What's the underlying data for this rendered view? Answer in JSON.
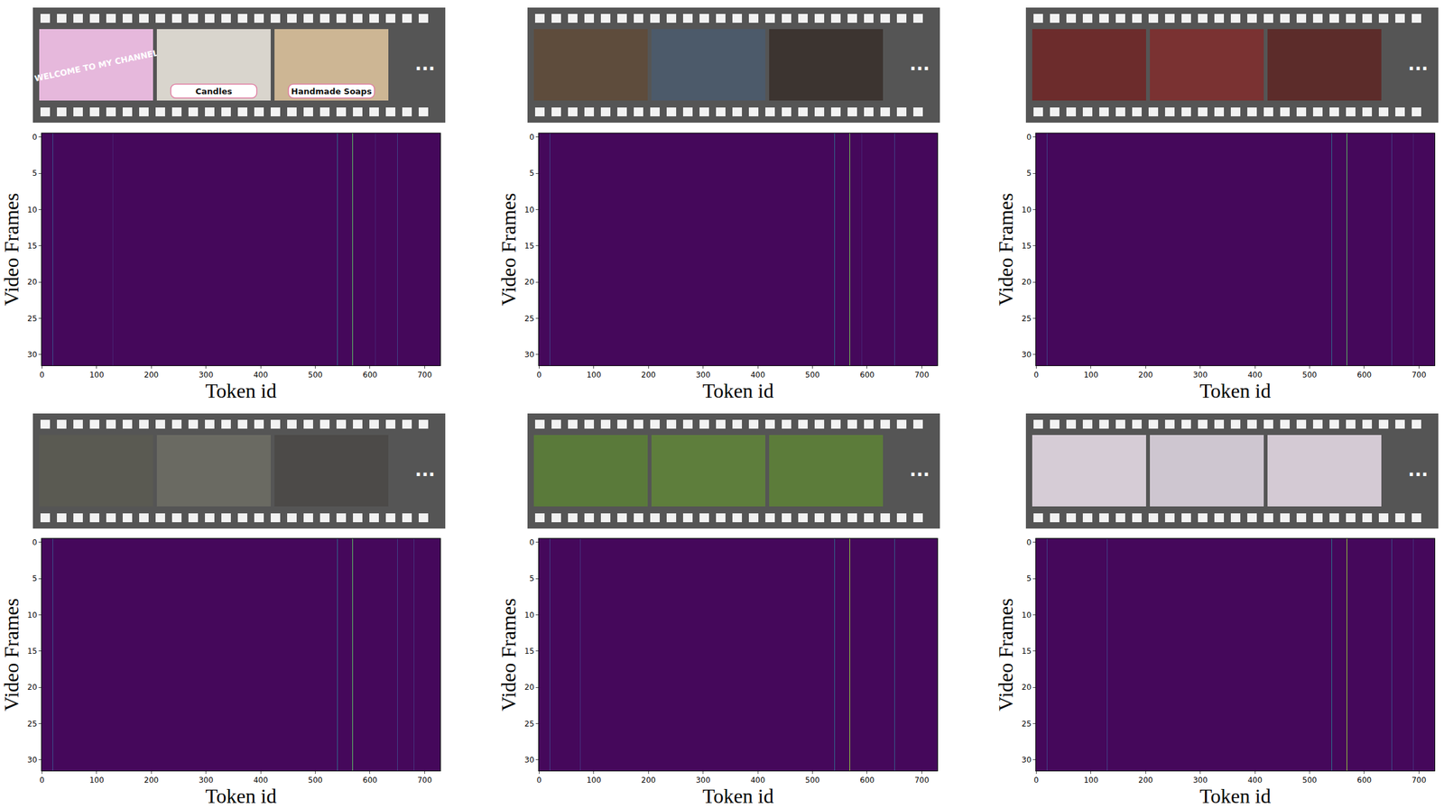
{
  "chart_data": [
    {
      "type": "heatmap",
      "xlabel": "Token id",
      "ylabel": "Video Frames",
      "xlim": [
        -0.5,
        728.5
      ],
      "xticks": [
        0,
        100,
        200,
        300,
        400,
        500,
        600,
        700
      ],
      "ylim": [
        31.5,
        -0.5
      ],
      "yticks": [
        0,
        5,
        10,
        15,
        20,
        25,
        30
      ],
      "filmstrip": {
        "colors": [
          "#e6b8dc",
          "#d9d5cd",
          "#cdb694"
        ],
        "captions": [
          "WELCOME TO MY CHANNEL",
          "Candles",
          "Handmade Soaps"
        ],
        "more": "..."
      },
      "cells": {
        "n_frames": 32,
        "n_tokens": 729,
        "background": 0.02,
        "color_range": [
          0,
          1
        ],
        "columns": [
          {
            "token": 20,
            "value": 0.25
          },
          {
            "token": 130,
            "value": 0.1
          },
          {
            "token": 540,
            "value": 0.35
          },
          {
            "token": 568,
            "value": 0.75
          },
          {
            "token": 610,
            "value": 0.1
          },
          {
            "token": 650,
            "value": 0.2
          }
        ]
      }
    },
    {
      "type": "heatmap",
      "xlabel": "Token id",
      "ylabel": "Video Frames",
      "xlim": [
        -0.5,
        728.5
      ],
      "xticks": [
        0,
        100,
        200,
        300,
        400,
        500,
        600,
        700
      ],
      "ylim": [
        31.5,
        -0.5
      ],
      "yticks": [
        0,
        5,
        10,
        15,
        20,
        25,
        30
      ],
      "filmstrip": {
        "colors": [
          "#5e4c3c",
          "#4c5a6a",
          "#3c3430"
        ],
        "captions": [
          null,
          null,
          null
        ],
        "more": "..."
      },
      "cells": {
        "n_frames": 32,
        "n_tokens": 729,
        "background": 0.02,
        "color_range": [
          0,
          1
        ],
        "columns": [
          {
            "token": 20,
            "value": 0.2
          },
          {
            "token": 540,
            "value": 0.35
          },
          {
            "token": 568,
            "value": 0.8
          },
          {
            "token": 590,
            "value": 0.1
          },
          {
            "token": 650,
            "value": 0.2
          }
        ]
      }
    },
    {
      "type": "heatmap",
      "xlabel": "Token id",
      "ylabel": "Video Frames",
      "xlim": [
        -0.5,
        728.5
      ],
      "xticks": [
        0,
        100,
        200,
        300,
        400,
        500,
        600,
        700
      ],
      "ylim": [
        31.5,
        -0.5
      ],
      "yticks": [
        0,
        5,
        10,
        15,
        20,
        25,
        30
      ],
      "filmstrip": {
        "colors": [
          "#6c2c2c",
          "#7a3232",
          "#5c2c2a"
        ],
        "captions": [
          null,
          null,
          null
        ],
        "more": "..."
      },
      "cells": {
        "n_frames": 32,
        "n_tokens": 729,
        "background": 0.02,
        "color_range": [
          0,
          1
        ],
        "columns": [
          {
            "token": 20,
            "value": 0.2
          },
          {
            "token": 540,
            "value": 0.35
          },
          {
            "token": 568,
            "value": 0.75
          },
          {
            "token": 650,
            "value": 0.2
          },
          {
            "token": 690,
            "value": 0.1
          }
        ]
      }
    },
    {
      "type": "heatmap",
      "xlabel": "Token id",
      "ylabel": "Video Frames",
      "xlim": [
        -0.5,
        728.5
      ],
      "xticks": [
        0,
        100,
        200,
        300,
        400,
        500,
        600,
        700
      ],
      "ylim": [
        31.5,
        -0.5
      ],
      "yticks": [
        0,
        5,
        10,
        15,
        20,
        25,
        30
      ],
      "filmstrip": {
        "colors": [
          "#5a5a52",
          "#6a6a62",
          "#4c4a48"
        ],
        "captions": [
          null,
          null,
          null
        ],
        "more": "..."
      },
      "cells": {
        "n_frames": 32,
        "n_tokens": 729,
        "background": 0.02,
        "color_range": [
          0,
          1
        ],
        "columns": [
          {
            "token": 20,
            "value": 0.25
          },
          {
            "token": 55,
            "value": 0.1
          },
          {
            "token": 540,
            "value": 0.35
          },
          {
            "token": 568,
            "value": 0.75
          },
          {
            "token": 650,
            "value": 0.2
          },
          {
            "token": 680,
            "value": 0.15
          }
        ]
      }
    },
    {
      "type": "heatmap",
      "xlabel": "Token id",
      "ylabel": "Video Frames",
      "xlim": [
        -0.5,
        728.5
      ],
      "xticks": [
        0,
        100,
        200,
        300,
        400,
        500,
        600,
        700
      ],
      "ylim": [
        31.5,
        -0.5
      ],
      "yticks": [
        0,
        5,
        10,
        15,
        20,
        25,
        30
      ],
      "filmstrip": {
        "colors": [
          "#5a7a3a",
          "#5e7e3c",
          "#5c7c3a"
        ],
        "captions": [
          null,
          null,
          null
        ],
        "more": "..."
      },
      "cells": {
        "n_frames": 32,
        "n_tokens": 729,
        "background": 0.02,
        "color_range": [
          0,
          1
        ],
        "columns": [
          {
            "token": 20,
            "value": 0.2
          },
          {
            "token": 75,
            "value": 0.15
          },
          {
            "token": 540,
            "value": 0.35
          },
          {
            "token": 568,
            "value": 0.85
          },
          {
            "token": 650,
            "value": 0.3
          }
        ]
      }
    },
    {
      "type": "heatmap",
      "xlabel": "Token id",
      "ylabel": "Video Frames",
      "xlim": [
        -0.5,
        728.5
      ],
      "xticks": [
        0,
        100,
        200,
        300,
        400,
        500,
        600,
        700
      ],
      "ylim": [
        31.5,
        -0.5
      ],
      "yticks": [
        0,
        5,
        10,
        15,
        20,
        25,
        30
      ],
      "filmstrip": {
        "colors": [
          "#d6ccd6",
          "#cec6d0",
          "#d4cad4"
        ],
        "captions": [
          null,
          null,
          null
        ],
        "more": "..."
      },
      "cells": {
        "n_frames": 32,
        "n_tokens": 729,
        "background": 0.02,
        "color_range": [
          0,
          1
        ],
        "columns": [
          {
            "token": 20,
            "value": 0.2
          },
          {
            "token": 130,
            "value": 0.2
          },
          {
            "token": 540,
            "value": 0.4
          },
          {
            "token": 568,
            "value": 0.85
          },
          {
            "token": 650,
            "value": 0.25
          },
          {
            "token": 690,
            "value": 0.15
          }
        ]
      }
    }
  ]
}
